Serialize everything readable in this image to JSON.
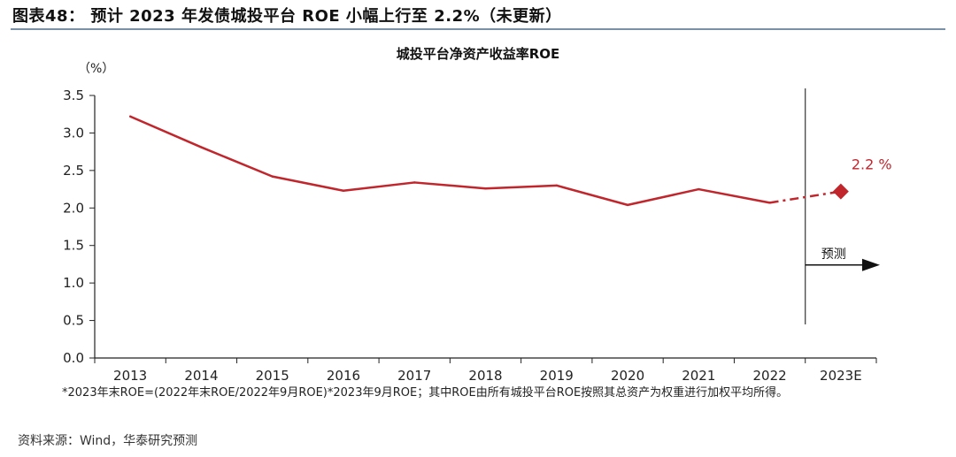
{
  "header": {
    "figure_title": "图表48： 预计 2023 年发债城投平台 ROE 小幅上行至 2.2%（未更新）"
  },
  "chart_data": {
    "type": "line",
    "title": "城投平台净资产收益率ROE",
    "ylabel": "（%）",
    "xlabel": "",
    "categories": [
      "2013",
      "2014",
      "2015",
      "2016",
      "2017",
      "2018",
      "2019",
      "2020",
      "2021",
      "2022",
      "2023E"
    ],
    "yticks": [
      "0.0",
      "0.5",
      "1.0",
      "1.5",
      "2.0",
      "2.5",
      "3.0",
      "3.5"
    ],
    "ylim": [
      0,
      3.5
    ],
    "grid": false,
    "series": [
      {
        "name": "ROE",
        "values": [
          3.22,
          2.81,
          2.42,
          2.23,
          2.34,
          2.26,
          2.3,
          2.04,
          2.25,
          2.07,
          null
        ],
        "color": "#c0262c"
      }
    ],
    "forecast": {
      "from_category": "2022",
      "to_category": "2023E",
      "from_value": 2.07,
      "value": 2.22,
      "label": "2.2 %",
      "marker": "diamond",
      "color": "#c0262c"
    },
    "forecast_arrow_label": "预测",
    "divider_after_category": "2022"
  },
  "footnote": "*2023年末ROE=(2022年末ROE/2022年9月ROE)*2023年9月ROE；其中ROE由所有城投平台ROE按照其总资产为权重进行加权平均所得。",
  "source": "资料来源：Wind，华泰研究预测"
}
